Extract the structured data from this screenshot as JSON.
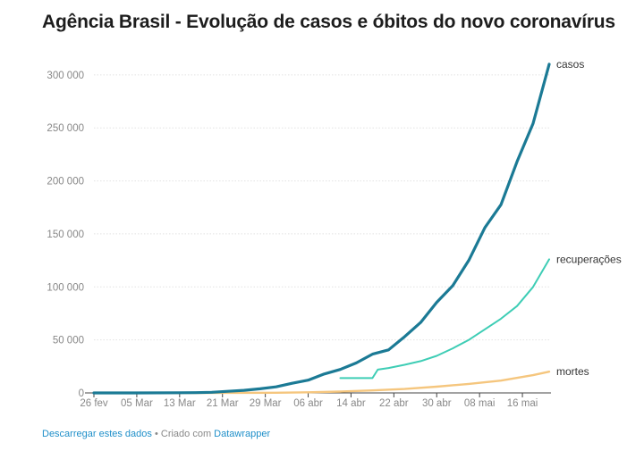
{
  "chart_data": {
    "type": "line",
    "title": "Agência Brasil - Evolução de casos e óbitos do novo coronavírus",
    "xlabel": "",
    "ylabel": "",
    "ylim": [
      0,
      310000
    ],
    "y_ticks": [
      0,
      50000,
      100000,
      150000,
      200000,
      250000,
      300000
    ],
    "y_tick_labels": [
      "0",
      "50 000",
      "100 000",
      "150 000",
      "200 000",
      "250 000",
      "300 000"
    ],
    "x_ticks": [
      "2020-02-26",
      "2020-03-05",
      "2020-03-13",
      "2020-03-21",
      "2020-03-29",
      "2020-04-06",
      "2020-04-14",
      "2020-04-22",
      "2020-04-30",
      "2020-05-08",
      "2020-05-16"
    ],
    "x_tick_labels": [
      "26 fev",
      "05 Mar",
      "13 Mar",
      "21 Mar",
      "29 Mar",
      "06 abr",
      "14 abr",
      "22 abr",
      "30 abr",
      "08 mai",
      "16 mai"
    ],
    "x_range": [
      "2020-02-26",
      "2020-05-21"
    ],
    "grid": "horizontal",
    "legend": "labels at line ends",
    "series": [
      {
        "name": "casos",
        "color": "#1b7a95",
        "x": [
          "2020-02-26",
          "2020-03-05",
          "2020-03-13",
          "2020-03-16",
          "2020-03-19",
          "2020-03-22",
          "2020-03-25",
          "2020-03-28",
          "2020-03-31",
          "2020-04-03",
          "2020-04-06",
          "2020-04-09",
          "2020-04-12",
          "2020-04-15",
          "2020-04-18",
          "2020-04-21",
          "2020-04-24",
          "2020-04-27",
          "2020-04-30",
          "2020-05-03",
          "2020-05-06",
          "2020-05-09",
          "2020-05-12",
          "2020-05-15",
          "2020-05-18",
          "2020-05-21"
        ],
        "y": [
          0,
          8,
          151,
          234,
          621,
          1546,
          2433,
          3904,
          5717,
          9056,
          12056,
          17857,
          22169,
          28320,
          36599,
          40581,
          52995,
          66501,
          85380,
          101147,
          125218,
          155939,
          177589,
          218223,
          254220,
          310087
        ]
      },
      {
        "name": "recuperações",
        "color": "#3ecdb5",
        "x": [
          "2020-04-12",
          "2020-04-15",
          "2020-04-18",
          "2020-04-19",
          "2020-04-21",
          "2020-04-24",
          "2020-04-27",
          "2020-04-30",
          "2020-05-03",
          "2020-05-06",
          "2020-05-09",
          "2020-05-12",
          "2020-05-15",
          "2020-05-18",
          "2020-05-21"
        ],
        "y": [
          14000,
          14000,
          14000,
          22000,
          23500,
          26500,
          30000,
          35000,
          42000,
          50000,
          60000,
          70000,
          82000,
          100000,
          126000
        ]
      },
      {
        "name": "mortes",
        "color": "#f5c67e",
        "x": [
          "2020-02-26",
          "2020-03-17",
          "2020-03-24",
          "2020-03-31",
          "2020-04-06",
          "2020-04-12",
          "2020-04-18",
          "2020-04-24",
          "2020-04-30",
          "2020-05-06",
          "2020-05-12",
          "2020-05-18",
          "2020-05-21"
        ],
        "y": [
          0,
          1,
          46,
          201,
          553,
          1223,
          2347,
          3670,
          5901,
          8536,
          11653,
          16792,
          20047
        ]
      }
    ]
  },
  "footer": {
    "download_link": "Descarregar estes dados",
    "separator": " • Criado com ",
    "credit_link": "Datawrapper"
  }
}
